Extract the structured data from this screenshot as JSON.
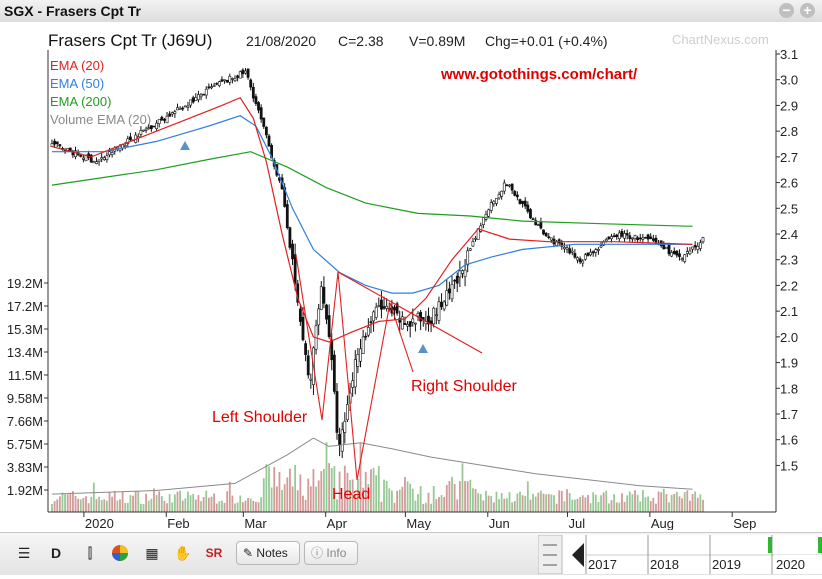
{
  "window": {
    "title": "SGX - Frasers Cpt Tr"
  },
  "header": {
    "name": "Frasers Cpt Tr (J69U)",
    "date": "21/08/2020",
    "close": "C=2.38",
    "volume": "V=0.89M",
    "change": "Chg=+0.01 (+0.4%)",
    "brand": "ChartNexus.com"
  },
  "legend": [
    {
      "label": "EMA (20)",
      "color": "#e02020"
    },
    {
      "label": "EMA (50)",
      "color": "#2f7fe0"
    },
    {
      "label": "EMA (200)",
      "color": "#1e9e1e"
    },
    {
      "label": "Volume EMA (20)",
      "color": "#8a8a8a"
    }
  ],
  "annotations": {
    "url": "www.gotothings.com/chart/",
    "left_shoulder": "Left Shoulder",
    "head": "Head",
    "right_shoulder": "Right Shoulder"
  },
  "chart_data": {
    "type": "candlestick",
    "y_ticks": [
      "3.1",
      "3.0",
      "2.9",
      "2.8",
      "2.7",
      "2.6",
      "2.5",
      "2.4",
      "2.3",
      "2.2",
      "2.1",
      "2.0",
      "1.9",
      "1.8",
      "1.7",
      "1.6",
      "1.5"
    ],
    "ylim": [
      1.42,
      3.1
    ],
    "volume_ticks": [
      "19.2M",
      "17.2M",
      "15.3M",
      "13.4M",
      "11.5M",
      "9.58M",
      "7.66M",
      "5.75M",
      "3.83M",
      "1.92M"
    ],
    "x_ticks": [
      "2020",
      "Feb",
      "Mar",
      "Apr",
      "May",
      "Jun",
      "Jul",
      "Aug",
      "Sep"
    ],
    "price_path": [
      [
        "2019-12-20",
        2.75
      ],
      [
        "2020-01-06",
        2.68
      ],
      [
        "2020-01-20",
        2.78
      ],
      [
        "2020-02-05",
        2.88
      ],
      [
        "2020-02-20",
        2.98
      ],
      [
        "2020-03-02",
        3.03
      ],
      [
        "2020-03-09",
        2.8
      ],
      [
        "2020-03-16",
        2.55
      ],
      [
        "2020-03-23",
        2.02
      ],
      [
        "2020-03-26",
        1.8
      ],
      [
        "2020-03-30",
        2.2
      ],
      [
        "2020-04-02",
        2.05
      ],
      [
        "2020-04-06",
        1.55
      ],
      [
        "2020-04-13",
        1.95
      ],
      [
        "2020-04-21",
        2.12
      ],
      [
        "2020-05-01",
        2.05
      ],
      [
        "2020-05-11",
        2.08
      ],
      [
        "2020-05-20",
        2.2
      ],
      [
        "2020-06-01",
        2.5
      ],
      [
        "2020-06-08",
        2.6
      ],
      [
        "2020-06-22",
        2.4
      ],
      [
        "2020-07-06",
        2.3
      ],
      [
        "2020-07-20",
        2.4
      ],
      [
        "2020-08-03",
        2.37
      ],
      [
        "2020-08-13",
        2.3
      ],
      [
        "2020-08-21",
        2.38
      ]
    ],
    "ema20": [
      [
        0,
        2.74
      ],
      [
        15,
        2.7
      ],
      [
        30,
        2.76
      ],
      [
        50,
        2.84
      ],
      [
        65,
        2.9
      ],
      [
        72,
        2.93
      ],
      [
        77,
        2.85
      ],
      [
        82,
        2.68
      ],
      [
        88,
        2.4
      ],
      [
        94,
        2.15
      ],
      [
        100,
        2.0
      ],
      [
        106,
        1.98
      ],
      [
        115,
        2.02
      ],
      [
        125,
        2.06
      ],
      [
        135,
        2.07
      ],
      [
        143,
        2.15
      ],
      [
        153,
        2.3
      ],
      [
        163,
        2.42
      ],
      [
        175,
        2.38
      ],
      [
        190,
        2.37
      ],
      [
        215,
        2.37
      ],
      [
        245,
        2.36
      ]
    ],
    "ema50": [
      [
        0,
        2.72
      ],
      [
        20,
        2.72
      ],
      [
        40,
        2.76
      ],
      [
        60,
        2.82
      ],
      [
        72,
        2.86
      ],
      [
        78,
        2.82
      ],
      [
        84,
        2.7
      ],
      [
        92,
        2.5
      ],
      [
        100,
        2.34
      ],
      [
        110,
        2.25
      ],
      [
        120,
        2.2
      ],
      [
        130,
        2.17
      ],
      [
        138,
        2.17
      ],
      [
        148,
        2.2
      ],
      [
        158,
        2.28
      ],
      [
        168,
        2.31
      ],
      [
        180,
        2.34
      ],
      [
        200,
        2.36
      ],
      [
        220,
        2.36
      ],
      [
        245,
        2.36
      ]
    ],
    "ema200": [
      [
        0,
        2.59
      ],
      [
        20,
        2.62
      ],
      [
        40,
        2.65
      ],
      [
        60,
        2.69
      ],
      [
        76,
        2.72
      ],
      [
        90,
        2.66
      ],
      [
        105,
        2.58
      ],
      [
        120,
        2.52
      ],
      [
        140,
        2.48
      ],
      [
        160,
        2.47
      ],
      [
        180,
        2.45
      ],
      [
        210,
        2.44
      ],
      [
        245,
        2.43
      ]
    ],
    "volume_ema": [
      [
        0,
        1.5
      ],
      [
        40,
        1.8
      ],
      [
        70,
        2.4
      ],
      [
        90,
        4.8
      ],
      [
        100,
        6.2
      ],
      [
        106,
        5.5
      ],
      [
        118,
        5.8
      ],
      [
        130,
        5.3
      ],
      [
        145,
        4.6
      ],
      [
        165,
        3.9
      ],
      [
        185,
        3.2
      ],
      [
        205,
        2.7
      ],
      [
        225,
        2.2
      ],
      [
        245,
        1.9
      ]
    ],
    "patterns": [
      "Left Shoulder",
      "Head",
      "Right Shoulder"
    ]
  },
  "toolbar": {
    "notes": "Notes",
    "info": "Info",
    "period": "D"
  },
  "navigator": {
    "years": [
      "2017",
      "2018",
      "2019",
      "2020"
    ]
  }
}
